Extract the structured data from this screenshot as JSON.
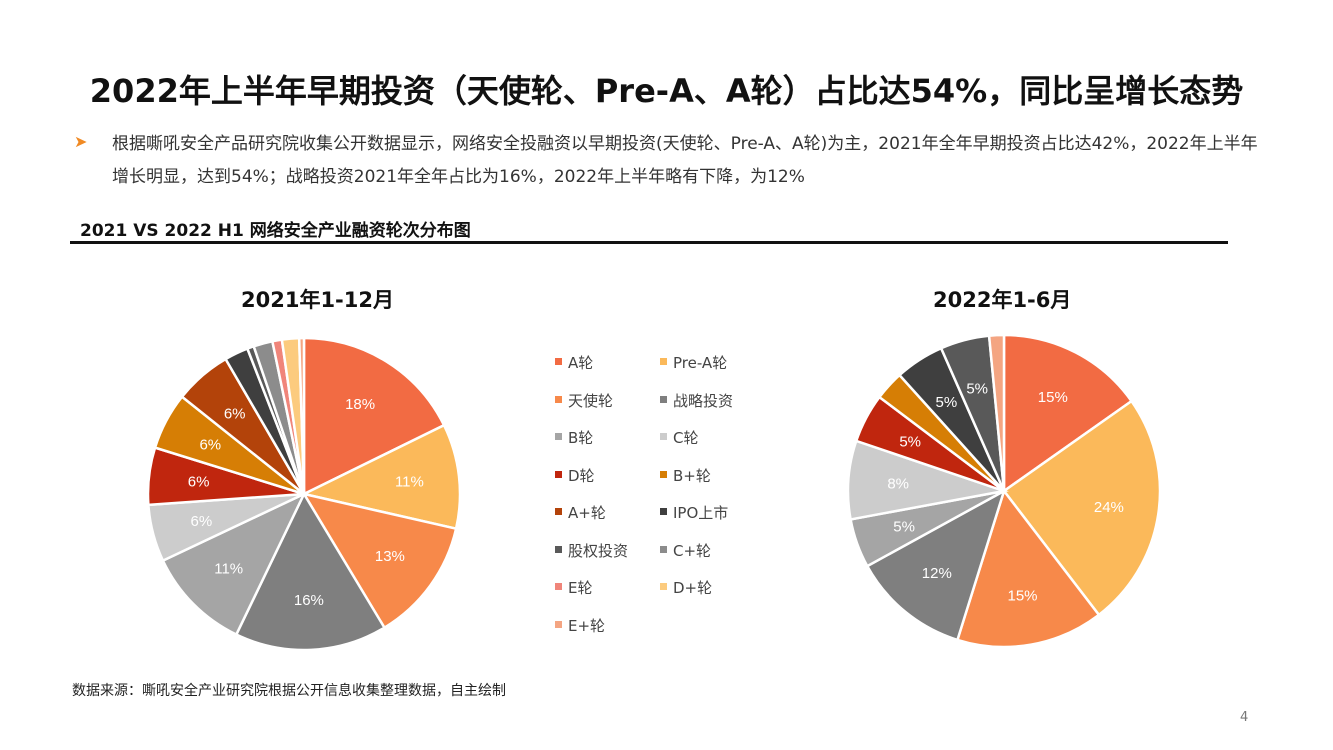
{
  "slide": {
    "title": "2022年上半年早期投资（天使轮、Pre-A、A轮）占比达54%，同比呈增长态势",
    "bullet": "根据嘶吼安全产品研究院收集公开数据显示，网络安全投融资以早期投资(天使轮、Pre-A、A轮)为主，2021年全年早期投资占比达42%，2022年上半年增长明显，达到54%；战略投资2021年全年占比为16%，2022年上半年略有下降，为12%",
    "subtitle": "2021 VS 2022 H1 网络安全产业融资轮次分布图",
    "source": "数据来源：嘶吼安全产业研究院根据公开信息收集整理数据，自主绘制",
    "page_number": "4"
  },
  "chart_data": [
    {
      "type": "pie",
      "title": "2021年1-12月",
      "unit": "%",
      "series": [
        {
          "name": "A轮",
          "value": 18,
          "label": "18%",
          "color": "#F26B43"
        },
        {
          "name": "Pre-A轮",
          "value": 11,
          "label": "11%",
          "color": "#FBB95A"
        },
        {
          "name": "天使轮",
          "value": 13,
          "label": "13%",
          "color": "#F7894A"
        },
        {
          "name": "战略投资",
          "value": 16,
          "label": "16%",
          "color": "#7F7F7F"
        },
        {
          "name": "B轮",
          "value": 11,
          "label": "11%",
          "color": "#A5A5A5"
        },
        {
          "name": "C轮",
          "value": 6,
          "label": "6%",
          "color": "#CCCCCC"
        },
        {
          "name": "D轮",
          "value": 6,
          "label": "6%",
          "color": "#C0260E"
        },
        {
          "name": "B+轮",
          "value": 6,
          "label": "6%",
          "color": "#D67E05"
        },
        {
          "name": "A+轮",
          "value": 6,
          "label": "6%",
          "color": "#B3430A"
        },
        {
          "name": "IPO上市",
          "value": 2.5,
          "label": "",
          "color": "#3F3F3F"
        },
        {
          "name": "股权投资",
          "value": 0.7,
          "label": "",
          "color": "#595959"
        },
        {
          "name": "C+轮",
          "value": 2,
          "label": "",
          "color": "#8C8C8C"
        },
        {
          "name": "E轮",
          "value": 1,
          "label": "",
          "color": "#F0857A"
        },
        {
          "name": "D+轮",
          "value": 1.8,
          "label": "",
          "color": "#FCCB7E"
        },
        {
          "name": "E+轮",
          "value": 0.5,
          "label": "",
          "color": "#F4A582"
        }
      ]
    },
    {
      "type": "pie",
      "title": "2022年1-6月",
      "unit": "%",
      "series": [
        {
          "name": "A轮",
          "value": 15,
          "label": "15%",
          "color": "#F26B43"
        },
        {
          "name": "Pre-A轮",
          "value": 24,
          "label": "24%",
          "color": "#FBB95A"
        },
        {
          "name": "天使轮",
          "value": 15,
          "label": "15%",
          "color": "#F7894A"
        },
        {
          "name": "战略投资",
          "value": 12,
          "label": "12%",
          "color": "#7F7F7F"
        },
        {
          "name": "B轮",
          "value": 5,
          "label": "5%",
          "color": "#A5A5A5"
        },
        {
          "name": "C轮",
          "value": 8,
          "label": "8%",
          "color": "#CCCCCC"
        },
        {
          "name": "D轮",
          "value": 5,
          "label": "5%",
          "color": "#C0260E"
        },
        {
          "name": "B+轮",
          "value": 3,
          "label": "",
          "color": "#D67E05"
        },
        {
          "name": "IPO上市",
          "value": 5,
          "label": "5%",
          "color": "#3F3F3F"
        },
        {
          "name": "C+轮",
          "value": 5,
          "label": "5%",
          "color": "#595959"
        },
        {
          "name": "E+轮",
          "value": 1.5,
          "label": "",
          "color": "#F4A582"
        }
      ]
    }
  ],
  "legend": {
    "items": [
      {
        "label": "A轮",
        "color": "#F26B43"
      },
      {
        "label": "Pre-A轮",
        "color": "#FBB95A"
      },
      {
        "label": "天使轮",
        "color": "#F7894A"
      },
      {
        "label": "战略投资",
        "color": "#7F7F7F"
      },
      {
        "label": "B轮",
        "color": "#A5A5A5"
      },
      {
        "label": "C轮",
        "color": "#CCCCCC"
      },
      {
        "label": "D轮",
        "color": "#C0260E"
      },
      {
        "label": "B+轮",
        "color": "#D67E05"
      },
      {
        "label": "A+轮",
        "color": "#B3430A"
      },
      {
        "label": "IPO上市",
        "color": "#3F3F3F"
      },
      {
        "label": "股权投资",
        "color": "#595959"
      },
      {
        "label": "C+轮",
        "color": "#8C8C8C"
      },
      {
        "label": "E轮",
        "color": "#F0857A"
      },
      {
        "label": "D+轮",
        "color": "#FCCB7E"
      },
      {
        "label": "E+轮",
        "color": "#F4A582"
      }
    ]
  }
}
